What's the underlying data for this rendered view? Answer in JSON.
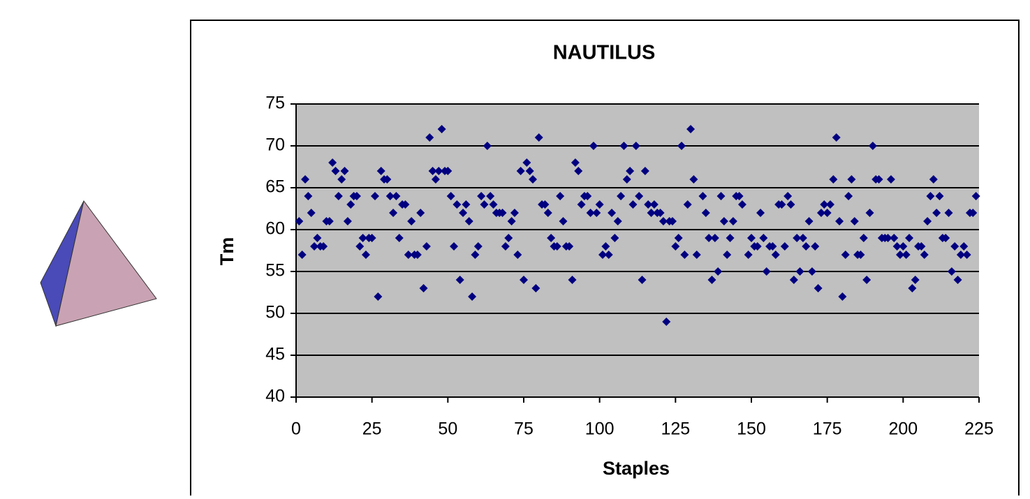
{
  "chart_data": {
    "type": "scatter",
    "title": "NAUTILUS",
    "x_label": "Staples",
    "y_label": "Tm",
    "series": [
      {
        "name": "Tm",
        "color": "#000080",
        "x": [
          1,
          2,
          3,
          4,
          5,
          6,
          7,
          8,
          9,
          10,
          11,
          12,
          13,
          14,
          15,
          16,
          17,
          18,
          19,
          20,
          21,
          22,
          23,
          24,
          25,
          26,
          27,
          28,
          29,
          30,
          31,
          32,
          33,
          34,
          35,
          36,
          37,
          38,
          39,
          40,
          41,
          42,
          43,
          44,
          45,
          46,
          47,
          48,
          49,
          50,
          51,
          52,
          53,
          54,
          55,
          56,
          57,
          58,
          59,
          60,
          61,
          62,
          63,
          64,
          65,
          66,
          67,
          68,
          69,
          70,
          71,
          72,
          73,
          74,
          75,
          76,
          77,
          78,
          79,
          80,
          81,
          82,
          83,
          84,
          85,
          86,
          87,
          88,
          89,
          90,
          91,
          92,
          93,
          94,
          95,
          96,
          97,
          98,
          99,
          100,
          101,
          102,
          103,
          104,
          105,
          106,
          107,
          108,
          109,
          110,
          111,
          112,
          113,
          114,
          115,
          116,
          117,
          118,
          119,
          120,
          121,
          122,
          123,
          124,
          125,
          126,
          127,
          128,
          129,
          130,
          131,
          132,
          134,
          135,
          136,
          137,
          138,
          139,
          140,
          141,
          142,
          143,
          144,
          145,
          146,
          147,
          149,
          150,
          151,
          152,
          153,
          154,
          155,
          156,
          157,
          158,
          159,
          160,
          161,
          162,
          163,
          164,
          165,
          166,
          167,
          168,
          169,
          170,
          171,
          172,
          173,
          174,
          175,
          176,
          177,
          178,
          179,
          180,
          181,
          182,
          183,
          184,
          185,
          186,
          187,
          188,
          189,
          190,
          191,
          192,
          193,
          194,
          195,
          196,
          197,
          198,
          199,
          200,
          201,
          202,
          203,
          204,
          205,
          206,
          207,
          208,
          209,
          210,
          211,
          212,
          213,
          214,
          215,
          216,
          217,
          218,
          219,
          220,
          221,
          222,
          223,
          224
        ],
        "values": [
          61,
          57,
          66,
          64,
          62,
          58,
          59,
          58,
          58,
          61,
          61,
          68,
          67,
          64,
          66,
          67,
          61,
          63,
          64,
          64,
          58,
          59,
          57,
          59,
          59,
          64,
          52,
          67,
          66,
          66,
          64,
          62,
          64,
          59,
          63,
          63,
          57,
          61,
          57,
          57,
          62,
          53,
          58,
          71,
          67,
          66,
          67,
          72,
          67,
          67,
          64,
          58,
          63,
          54,
          62,
          63,
          61,
          52,
          57,
          58,
          64,
          63,
          70,
          64,
          63,
          62,
          62,
          62,
          58,
          59,
          61,
          62,
          57,
          67,
          54,
          68,
          67,
          66,
          53,
          71,
          63,
          63,
          62,
          59,
          58,
          58,
          64,
          61,
          58,
          58,
          54,
          68,
          67,
          63,
          64,
          64,
          62,
          70,
          62,
          63,
          57,
          58,
          57,
          62,
          59,
          61,
          64,
          70,
          66,
          67,
          63,
          70,
          64,
          54,
          67,
          63,
          62,
          63,
          62,
          62,
          61,
          49,
          61,
          61,
          58,
          59,
          70,
          57,
          63,
          72,
          66,
          57,
          64,
          62,
          59,
          54,
          59,
          55,
          64,
          61,
          57,
          59,
          61,
          64,
          64,
          63,
          57,
          59,
          58,
          58,
          62,
          59,
          55,
          58,
          58,
          57,
          63,
          63,
          58,
          64,
          63,
          54,
          59,
          55,
          59,
          58,
          61,
          55,
          58,
          53,
          62,
          63,
          62,
          63,
          66,
          71,
          61,
          52,
          57,
          64,
          66,
          61,
          57,
          57,
          59,
          54,
          62,
          70,
          66,
          66,
          59,
          59,
          59,
          66,
          59,
          58,
          57,
          58,
          57,
          59,
          53,
          54,
          58,
          58,
          57,
          61,
          64,
          66,
          62,
          64,
          59,
          59,
          62,
          55,
          58,
          54,
          57,
          58,
          57,
          62,
          62,
          64
        ]
      }
    ],
    "xlim": [
      0,
      225
    ],
    "xticks": [
      0,
      25,
      50,
      75,
      100,
      125,
      150,
      175,
      200,
      225
    ],
    "ylim": [
      40,
      75
    ],
    "yticks": [
      40,
      45,
      50,
      55,
      60,
      65,
      70,
      75
    ],
    "grid": true
  }
}
